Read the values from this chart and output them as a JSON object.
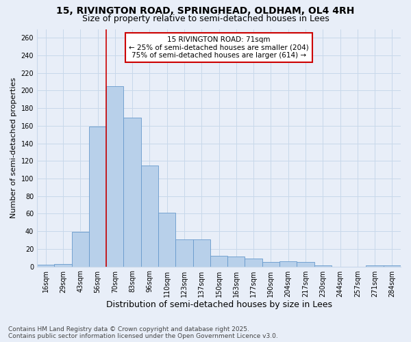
{
  "title_line1": "15, RIVINGTON ROAD, SPRINGHEAD, OLDHAM, OL4 4RH",
  "title_line2": "Size of property relative to semi-detached houses in Lees",
  "xlabel": "Distribution of semi-detached houses by size in Lees",
  "ylabel": "Number of semi-detached properties",
  "categories": [
    "16sqm",
    "29sqm",
    "43sqm",
    "56sqm",
    "70sqm",
    "83sqm",
    "96sqm",
    "110sqm",
    "123sqm",
    "137sqm",
    "150sqm",
    "163sqm",
    "177sqm",
    "190sqm",
    "204sqm",
    "217sqm",
    "230sqm",
    "244sqm",
    "257sqm",
    "271sqm",
    "284sqm"
  ],
  "values": [
    2,
    3,
    39,
    159,
    205,
    169,
    115,
    61,
    31,
    31,
    12,
    11,
    9,
    5,
    6,
    5,
    1,
    0,
    0,
    1,
    1
  ],
  "bar_color": "#b8d0ea",
  "bar_edgecolor": "#6699cc",
  "vline_index": 4,
  "subject_label": "15 RIVINGTON ROAD: 71sqm",
  "pct_smaller_label": "← 25% of semi-detached houses are smaller (204)",
  "pct_larger_label": "75% of semi-detached houses are larger (614) →",
  "annotation_box_facecolor": "#ffffff",
  "annotation_box_edgecolor": "#cc0000",
  "vline_color": "#cc0000",
  "grid_color": "#c8d8ea",
  "background_color": "#e8eef8",
  "ylim": [
    0,
    270
  ],
  "yticks": [
    0,
    20,
    40,
    60,
    80,
    100,
    120,
    140,
    160,
    180,
    200,
    220,
    240,
    260
  ],
  "footnote_line1": "Contains HM Land Registry data © Crown copyright and database right 2025.",
  "footnote_line2": "Contains public sector information licensed under the Open Government Licence v3.0.",
  "title_fontsize": 10,
  "subtitle_fontsize": 9,
  "xlabel_fontsize": 9,
  "ylabel_fontsize": 8,
  "tick_fontsize": 7,
  "annotation_fontsize": 7.5,
  "footnote_fontsize": 6.5
}
